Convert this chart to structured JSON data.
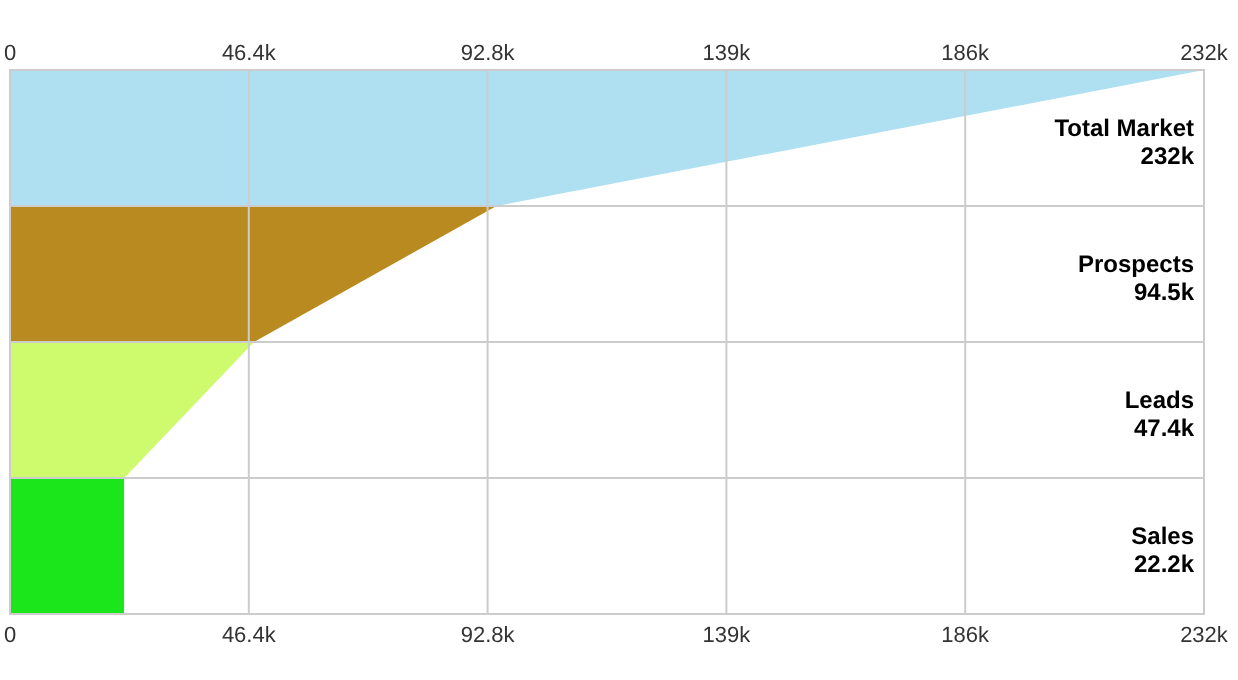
{
  "chart_data": {
    "type": "bar",
    "orientation": "horizontal",
    "categories": [
      "Total Market",
      "Prospects",
      "Leads",
      "Sales"
    ],
    "values": [
      232000,
      94500,
      47400,
      22200
    ],
    "colors": [
      "#aee0f2",
      "#b98a1f",
      "#cefa6e",
      "#1be61b"
    ],
    "value_labels": [
      "232k",
      "94.5k",
      "47.4k",
      "22.2k"
    ],
    "xlim": [
      0,
      232000
    ],
    "xticks": [
      0,
      {
        "value": 46400,
        "label": "46.4k"
      },
      {
        "value": 92800,
        "label": "92.8k"
      },
      {
        "value": 139200,
        "label": "139k"
      },
      {
        "value": 185600,
        "label": "186k"
      },
      {
        "value": 232000,
        "label": "232k"
      }
    ],
    "x2lim": [
      0,
      232000
    ],
    "x2ticks": [
      0,
      {
        "value": 46400,
        "label": "46.4k"
      },
      {
        "value": 92800,
        "label": "92.8k"
      },
      {
        "value": 139200,
        "label": "139k"
      },
      {
        "value": 185600,
        "label": "186k"
      },
      {
        "value": 232000,
        "label": "232k"
      }
    ],
    "grid": true
  }
}
